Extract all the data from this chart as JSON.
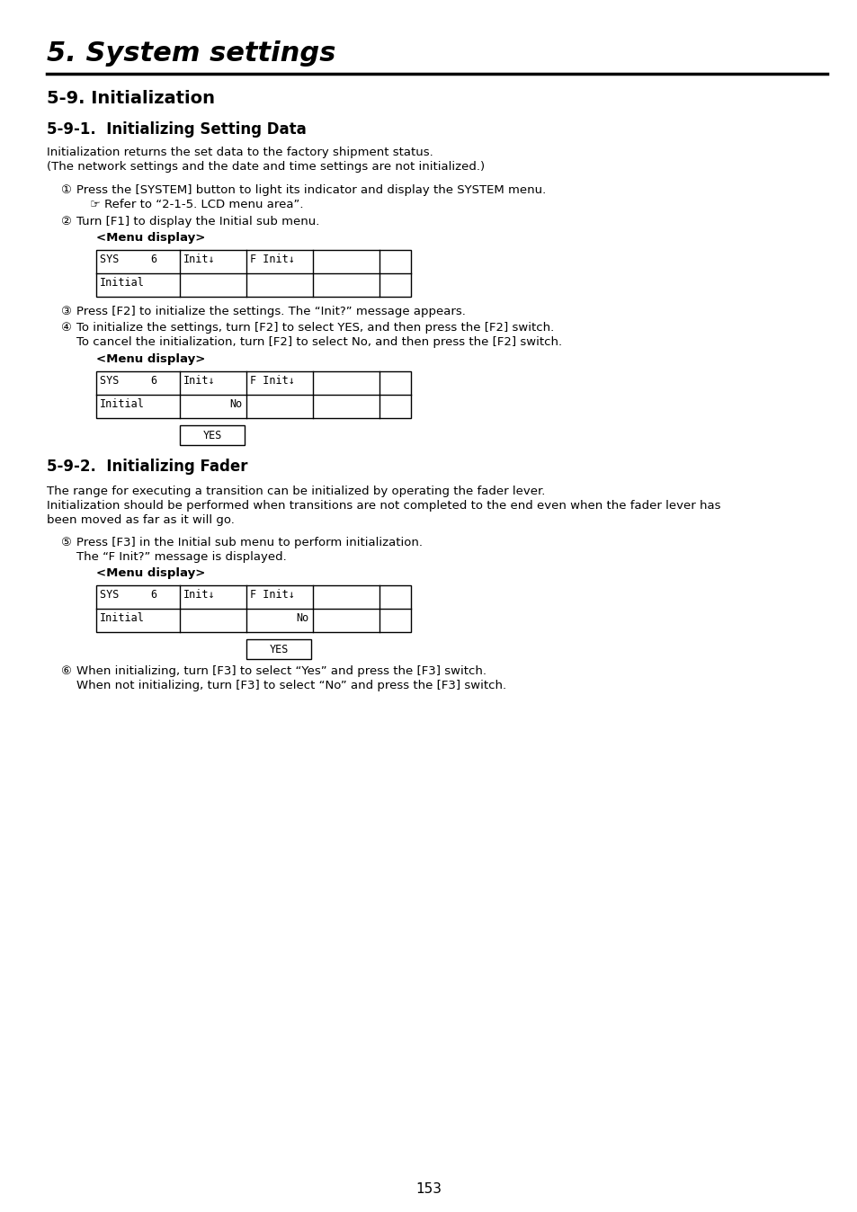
{
  "page_title": "5. System settings",
  "section_title": "5-9. Initialization",
  "subsection1_title": "5-9-1.  Initializing Setting Data",
  "subsection1_intro_1": "Initialization returns the set data to the factory shipment status.",
  "subsection1_intro_2": "(The network settings and the date and time settings are not initialized.)",
  "step1_circle": "①",
  "step1_text": "Press the [SYSTEM] button to light its indicator and display the SYSTEM menu.",
  "step1_sub": "☞ Refer to “2-1-5. LCD menu area”.",
  "step2_circle": "②",
  "step2_text": "Turn [F1] to display the Initial sub menu.",
  "menu_display_label": "<Menu display>",
  "step3_circle": "③",
  "step3_text": "Press [F2] to initialize the settings. The “Init?” message appears.",
  "step4_circle": "④",
  "step4_text1": "To initialize the settings, turn [F2] to select YES, and then press the [F2] switch.",
  "step4_text2": "To cancel the initialization, turn [F2] to select No, and then press the [F2] switch.",
  "subsection2_title": "5-9-2.  Initializing Fader",
  "subsection2_intro_1": "The range for executing a transition can be initialized by operating the fader lever.",
  "subsection2_intro_2": "Initialization should be performed when transitions are not completed to the end even when the fader lever has",
  "subsection2_intro_3": "been moved as far as it will go.",
  "step5_circle": "⑤",
  "step5_text1": "Press [F3] in the Initial sub menu to perform initialization.",
  "step5_text2": "The “F Init?” message is displayed.",
  "step6_circle": "⑥",
  "step6_text1": "When initializing, turn [F3] to select “Yes” and press the [F3] switch.",
  "step6_text2": "When not initializing, turn [F3] to select “No” and press the [F3] switch.",
  "page_number": "153",
  "bg_color": "#ffffff",
  "mono_font": "DejaVu Sans Mono"
}
